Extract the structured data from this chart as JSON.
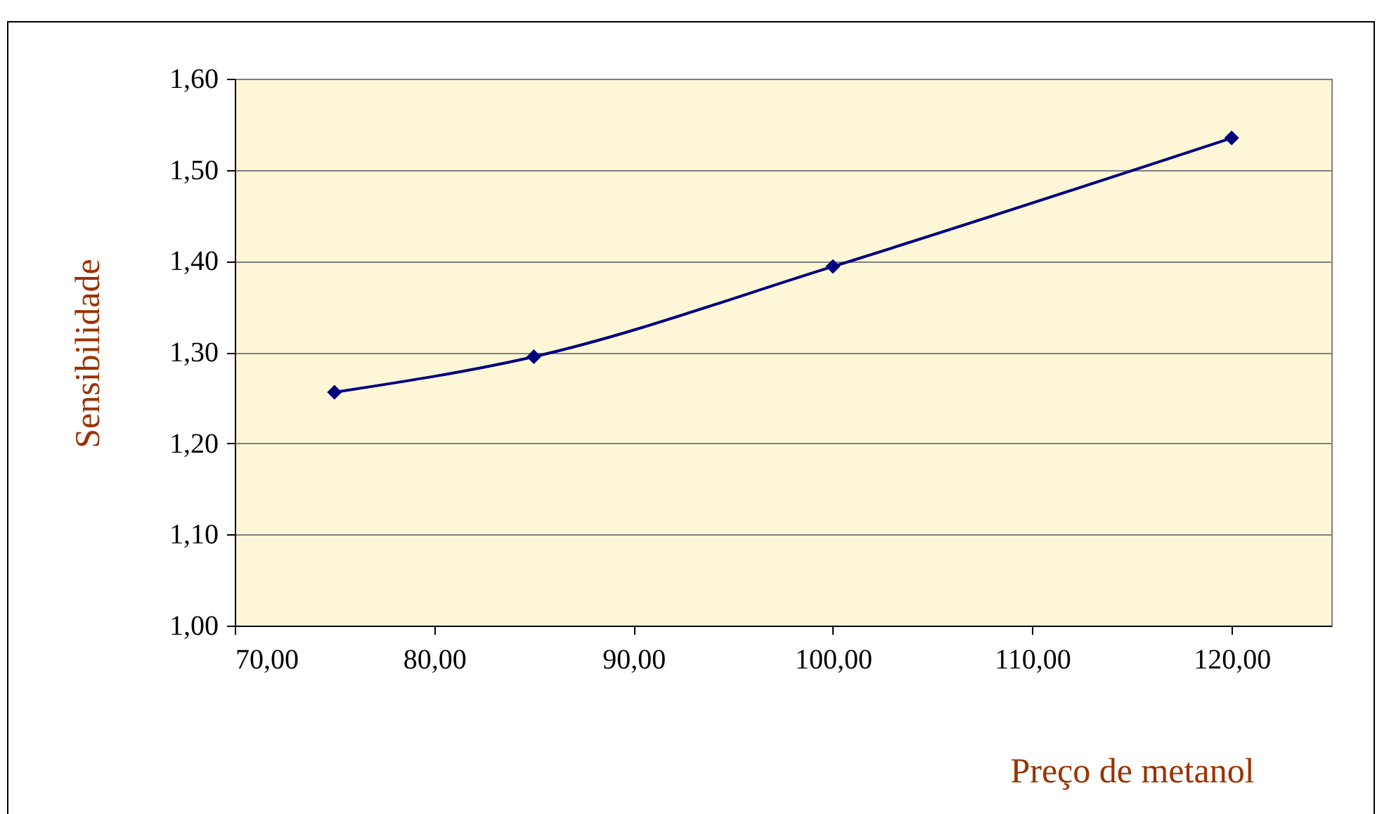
{
  "chart_data": {
    "type": "line",
    "xlabel": "Preço de metanol",
    "ylabel": "Sensibilidade",
    "x": [
      75,
      85,
      100,
      120
    ],
    "series": [
      {
        "color": "#000080",
        "values": [
          1.256,
          1.295,
          1.394,
          1.535
        ]
      }
    ],
    "xlim": [
      70,
      125
    ],
    "xticks": [
      {
        "value": 70,
        "label": "70,00"
      },
      {
        "value": 80,
        "label": "80,00"
      },
      {
        "value": 90,
        "label": "90,00"
      },
      {
        "value": 100,
        "label": "100,00"
      },
      {
        "value": 110,
        "label": "110,00"
      },
      {
        "value": 120,
        "label": "120,00"
      }
    ],
    "ylim": [
      1.0,
      1.6
    ],
    "yticks": [
      {
        "value": 1.0,
        "label": "1,00"
      },
      {
        "value": 1.1,
        "label": "1,10"
      },
      {
        "value": 1.2,
        "label": "1,20"
      },
      {
        "value": 1.3,
        "label": "1,30"
      },
      {
        "value": 1.4,
        "label": "1,40"
      },
      {
        "value": 1.5,
        "label": "1,50"
      },
      {
        "value": 1.6,
        "label": "1,60"
      }
    ],
    "grid": "y",
    "legend": false,
    "marker": "diamond",
    "line_style": "solid"
  }
}
